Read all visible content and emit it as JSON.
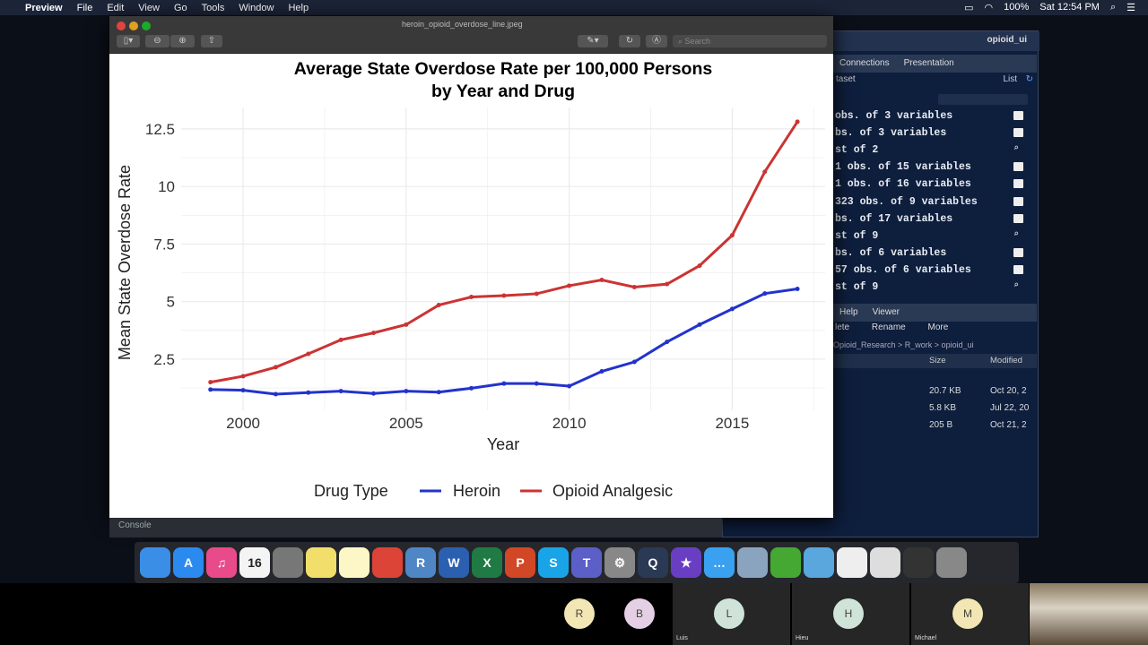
{
  "menubar": {
    "app": "Preview",
    "items": [
      "File",
      "Edit",
      "View",
      "Go",
      "Tools",
      "Window",
      "Help"
    ],
    "battery": "100%",
    "clock": "Sat 12:54 PM"
  },
  "preview": {
    "filename": "heroin_opioid_overdose_line.jpeg",
    "search_placeholder": "Search"
  },
  "rstudio": {
    "project": "opioid_ui",
    "tabs": [
      "Connections",
      "Presentation"
    ],
    "env_toolbar": {
      "dataset": "taset",
      "view": "List"
    },
    "env_rows": [
      {
        "text": "obs. of 3 variables",
        "icon": "table"
      },
      {
        "text": "bs. of 3 variables",
        "icon": "table"
      },
      {
        "text": "st of 2",
        "icon": "search"
      },
      {
        "text": "1 obs. of 15 variables",
        "icon": "table"
      },
      {
        "text": "1 obs. of 16 variables",
        "icon": "table"
      },
      {
        "text": "323 obs. of 9 variables",
        "icon": "table"
      },
      {
        "text": "bs. of 17 variables",
        "icon": "table"
      },
      {
        "text": "st of 9",
        "icon": "search"
      },
      {
        "text": "bs. of 6 variables",
        "icon": "table"
      },
      {
        "text": "57 obs. of 6 variables",
        "icon": "table"
      },
      {
        "text": "st of 9",
        "icon": "search"
      }
    ],
    "files_tabs": [
      "Help",
      "Viewer"
    ],
    "files_toolbar": {
      "delete": "lete",
      "rename": "Rename",
      "more": "More"
    },
    "breadcrumb": "Opioid_Research > R_work > opioid_ui",
    "columns": {
      "size": "Size",
      "modified": "Modified"
    },
    "files": [
      {
        "size": "20.7 KB",
        "modified": "Oct 20, 2"
      },
      {
        "size": "5.8 KB",
        "modified": "Jul 22, 20"
      },
      {
        "size": "205 B",
        "modified": "Oct 21, 2"
      }
    ],
    "console": "Console"
  },
  "dock": {
    "apps": [
      {
        "name": "finder",
        "label": "",
        "color": "#3a8ee6"
      },
      {
        "name": "app-store",
        "label": "A",
        "color": "#2a8af0"
      },
      {
        "name": "itunes",
        "label": "♫",
        "color": "#e84a8a"
      },
      {
        "name": "calendar",
        "label": "16",
        "color": "#f4f4f4"
      },
      {
        "name": "books",
        "label": "",
        "color": "#777"
      },
      {
        "name": "stickies",
        "label": "",
        "color": "#f2de6a"
      },
      {
        "name": "notes",
        "label": "",
        "color": "#fdf7c8"
      },
      {
        "name": "chrome",
        "label": "",
        "color": "#db4437"
      },
      {
        "name": "rstudio",
        "label": "R",
        "color": "#4f86c6"
      },
      {
        "name": "word",
        "label": "W",
        "color": "#2b5fb0"
      },
      {
        "name": "excel",
        "label": "X",
        "color": "#1f7a44"
      },
      {
        "name": "powerpoint",
        "label": "P",
        "color": "#d24726"
      },
      {
        "name": "skype",
        "label": "S",
        "color": "#1aa4e8"
      },
      {
        "name": "teams",
        "label": "T",
        "color": "#5b5fc7"
      },
      {
        "name": "system-preferences",
        "label": "⚙",
        "color": "#888"
      },
      {
        "name": "quicktime",
        "label": "Q",
        "color": "#2a3a55"
      },
      {
        "name": "imovie",
        "label": "★",
        "color": "#6a3ec2"
      },
      {
        "name": "messages",
        "label": "…",
        "color": "#3aa0f0"
      },
      {
        "name": "preview",
        "label": "",
        "color": "#8aa4c0"
      },
      {
        "name": "anaconda",
        "label": "",
        "color": "#44a833"
      },
      {
        "name": "folder",
        "label": "",
        "color": "#5aa7de"
      },
      {
        "name": "document",
        "label": "",
        "color": "#eee"
      },
      {
        "name": "spreadsheet",
        "label": "",
        "color": "#ddd"
      },
      {
        "name": "screenshot",
        "label": "",
        "color": "#333"
      },
      {
        "name": "trash",
        "label": "",
        "color": "#888"
      }
    ]
  },
  "meeting": {
    "participants": [
      {
        "initial": "R",
        "name": "",
        "color": "#f3e6b5"
      },
      {
        "initial": "B",
        "name": "",
        "color": "#e5cfe5"
      },
      {
        "initial": "L",
        "name": "Luis",
        "color": "#cfe3d8"
      },
      {
        "initial": "H",
        "name": "Hieu",
        "color": "#cfe3d8"
      },
      {
        "initial": "M",
        "name": "Michael",
        "color": "#f3e6b5"
      }
    ]
  },
  "chart_data": {
    "type": "line",
    "title": "Average State Overdose Rate per 100,000 Persons",
    "subtitle": "by Year and Drug",
    "xlabel": "Year",
    "ylabel": "Mean State Overdose Rate",
    "xlim": [
      1998.1,
      2017.85
    ],
    "ylim": [
      0.28,
      13.43
    ],
    "xticks": [
      2000,
      2005,
      2010,
      2015
    ],
    "yticks": [
      2.5,
      5.0,
      7.5,
      10.0,
      12.5
    ],
    "grid": true,
    "legend": {
      "title": "Drug Type",
      "placement": "bottom"
    },
    "x": [
      1999,
      2000,
      2001,
      2002,
      2003,
      2004,
      2005,
      2006,
      2007,
      2008,
      2009,
      2010,
      2011,
      2012,
      2013,
      2014,
      2015,
      2016,
      2017
    ],
    "series": [
      {
        "name": "Heroin",
        "color": "#2233cc",
        "values": [
          1.18,
          1.15,
          0.98,
          1.05,
          1.11,
          1.01,
          1.11,
          1.07,
          1.24,
          1.44,
          1.44,
          1.33,
          1.97,
          2.38,
          3.25,
          4.0,
          4.68,
          5.35,
          5.55
        ]
      },
      {
        "name": "Opioid Analgesic",
        "color": "#cc3333",
        "values": [
          1.5,
          1.76,
          2.15,
          2.73,
          3.34,
          3.64,
          4.0,
          4.85,
          5.2,
          5.26,
          5.34,
          5.69,
          5.94,
          5.63,
          5.76,
          6.56,
          7.88,
          10.64,
          12.81
        ]
      }
    ]
  }
}
